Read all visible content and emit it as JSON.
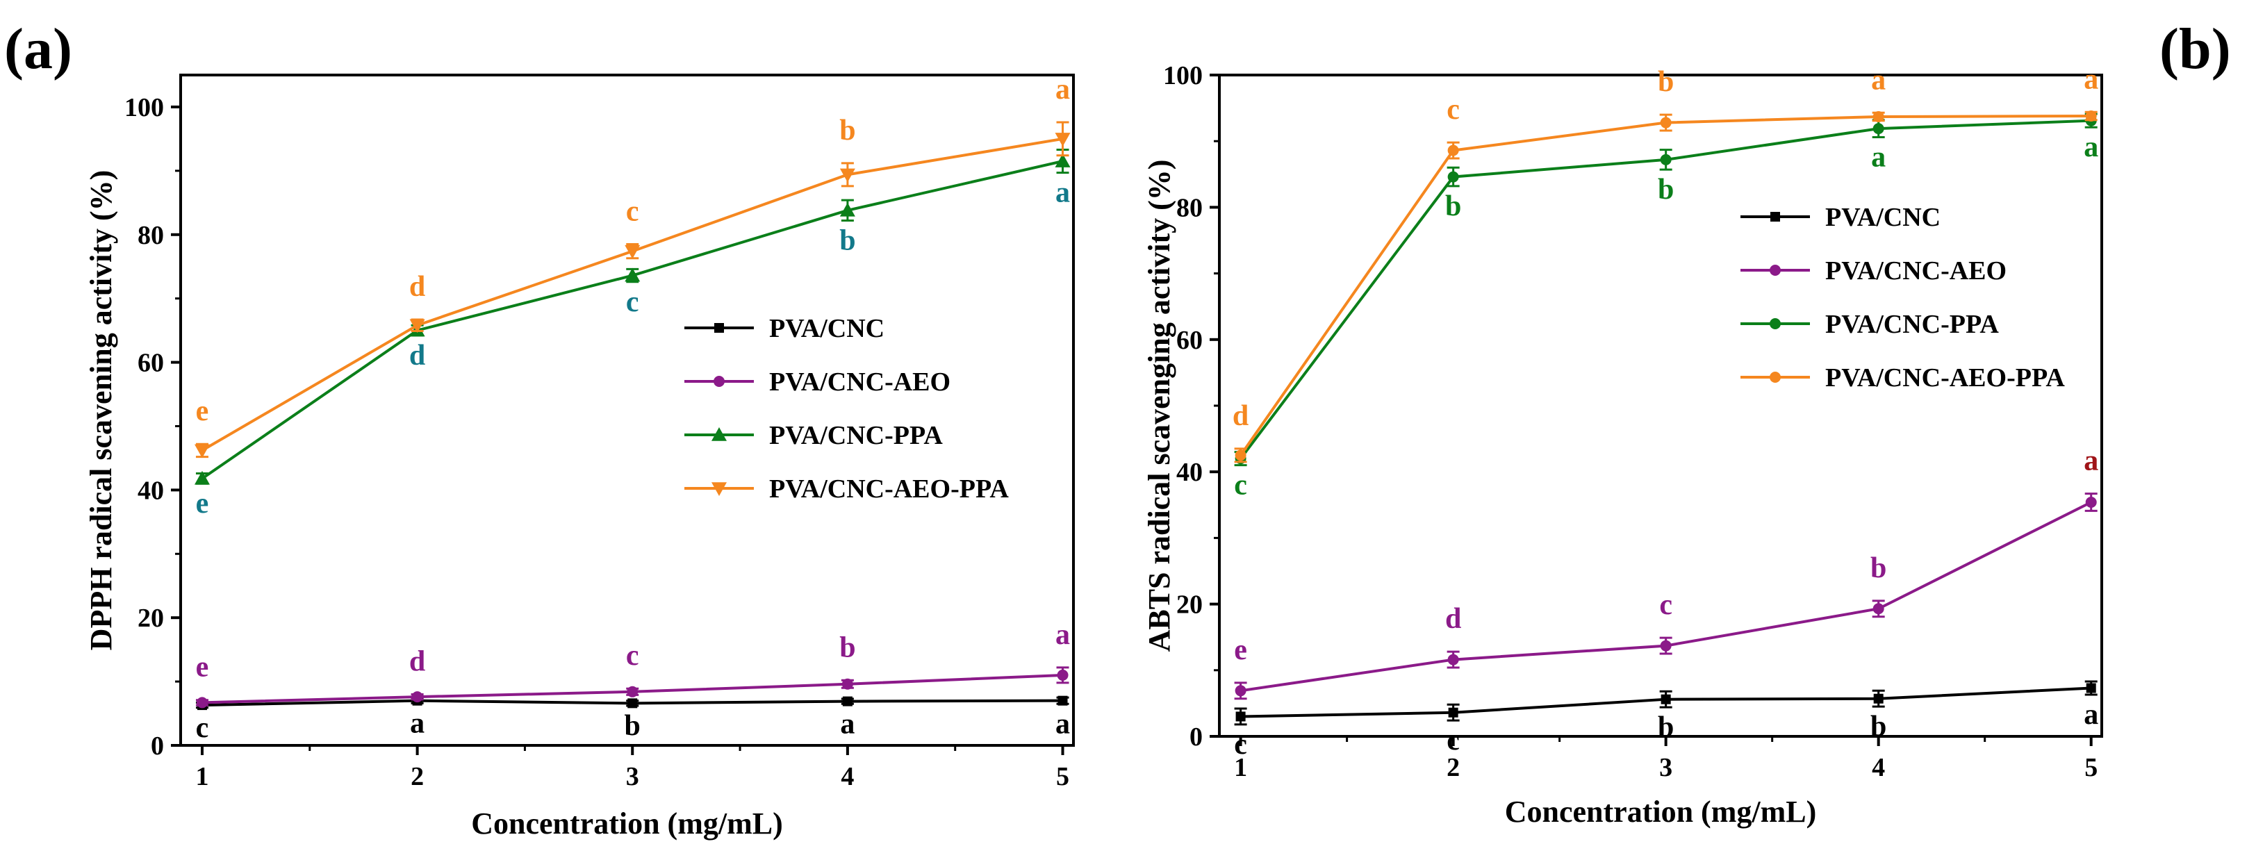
{
  "chart_data": [
    {
      "type": "line",
      "panel_label": "(a)",
      "xlabel": "Concentration (mg/mL)",
      "ylabel": "DPPH radical scavening activity (%)",
      "x": [
        1,
        2,
        3,
        4,
        5
      ],
      "x_ticks": [
        "1",
        "2",
        "3",
        "4",
        "5"
      ],
      "xlim": [
        0.9,
        5.05
      ],
      "ylim": [
        0,
        105
      ],
      "y_ticks": [
        "0",
        "20",
        "40",
        "60",
        "80",
        "100"
      ],
      "y_tick_values": [
        0,
        20,
        40,
        60,
        80,
        100
      ],
      "legend_position": "center-right",
      "series": [
        {
          "name": "PVA/CNC",
          "marker": "square",
          "color": "#000000",
          "values": [
            6.3,
            7.0,
            6.6,
            6.9,
            7.0
          ],
          "errors": [
            0.4,
            0.4,
            0.4,
            0.4,
            0.5
          ],
          "sig": [
            "c",
            "a",
            "b",
            "a",
            "a"
          ],
          "sig_pos": "below",
          "sig_color": "#000000"
        },
        {
          "name": "PVA/CNC-AEO",
          "marker": "circle",
          "color": "#8b1a89",
          "values": [
            6.7,
            7.6,
            8.4,
            9.6,
            11.0
          ],
          "errors": [
            0.4,
            0.4,
            0.5,
            0.6,
            1.2
          ],
          "sig": [
            "e",
            "d",
            "c",
            "b",
            "a"
          ],
          "sig_pos": "above",
          "sig_color": "#8b1a89"
        },
        {
          "name": "PVA/CNC-PPA",
          "marker": "triangle-up",
          "color": "#0b7f1a",
          "values": [
            41.8,
            65.0,
            73.6,
            83.8,
            91.5
          ],
          "errors": [
            0.8,
            0.8,
            1.0,
            1.6,
            1.8
          ],
          "sig": [
            "e",
            "d",
            "c",
            "b",
            "a"
          ],
          "sig_pos": "below",
          "sig_color": "#12798a"
        },
        {
          "name": "PVA/CNC-AEO-PPA",
          "marker": "triangle-down",
          "color": "#f5871f",
          "values": [
            46.2,
            65.8,
            77.4,
            89.4,
            95.0
          ],
          "errors": [
            1.0,
            0.9,
            1.1,
            1.8,
            2.6
          ],
          "sig": [
            "e",
            "d",
            "c",
            "b",
            "a"
          ],
          "sig_pos": "above",
          "sig_color": "#f5871f"
        }
      ]
    },
    {
      "type": "line",
      "panel_label": "(b)",
      "xlabel": "Concentration (mg/mL)",
      "ylabel": "ABTS radical scavenging activity (%)",
      "x": [
        1,
        2,
        3,
        4,
        5
      ],
      "x_ticks": [
        "1",
        "2",
        "3",
        "4",
        "5"
      ],
      "xlim": [
        0.9,
        5.05
      ],
      "ylim": [
        0,
        100
      ],
      "y_ticks": [
        "0",
        "20",
        "40",
        "60",
        "80",
        "100"
      ],
      "y_tick_values": [
        0,
        20,
        40,
        60,
        80,
        100
      ],
      "legend_position": "top-right",
      "series": [
        {
          "name": "PVA/CNC",
          "marker": "square",
          "color": "#000000",
          "values": [
            3.0,
            3.6,
            5.6,
            5.7,
            7.3
          ],
          "errors": [
            1.2,
            1.2,
            1.2,
            1.2,
            1.0
          ],
          "sig": [
            "c",
            "c",
            "b",
            "b",
            "a"
          ],
          "sig_pos": "below",
          "sig_color": "#000000"
        },
        {
          "name": "PVA/CNC-AEO",
          "marker": "circle",
          "color": "#8b1a89",
          "values": [
            6.9,
            11.6,
            13.7,
            19.3,
            35.4
          ],
          "errors": [
            1.2,
            1.2,
            1.2,
            1.2,
            1.3
          ],
          "sig": [
            "e",
            "d",
            "c",
            "b",
            "a"
          ],
          "sig_pos": "above",
          "sig_color": "#8b1a89",
          "sig_colors": [
            "#8b1a89",
            "#8b1a89",
            "#8b1a89",
            "#8b1a89",
            "#a01418"
          ]
        },
        {
          "name": "PVA/CNC-PPA",
          "marker": "circle",
          "color": "#0b7f1a",
          "values": [
            42.0,
            84.6,
            87.2,
            91.9,
            93.1
          ],
          "errors": [
            1.0,
            1.4,
            1.5,
            1.3,
            1.0
          ],
          "sig": [
            "c",
            "b",
            "b",
            "a",
            "a"
          ],
          "sig_pos": "below",
          "sig_color": "#0b7f1a"
        },
        {
          "name": "PVA/CNC-AEO-PPA",
          "marker": "circle",
          "color": "#f5871f",
          "values": [
            42.5,
            88.6,
            92.8,
            93.7,
            93.8
          ],
          "errors": [
            1.0,
            1.2,
            1.2,
            0.6,
            0.6
          ],
          "sig": [
            "d",
            "c",
            "b",
            "a",
            "a"
          ],
          "sig_pos": "above",
          "sig_color": "#f5871f"
        }
      ]
    }
  ]
}
